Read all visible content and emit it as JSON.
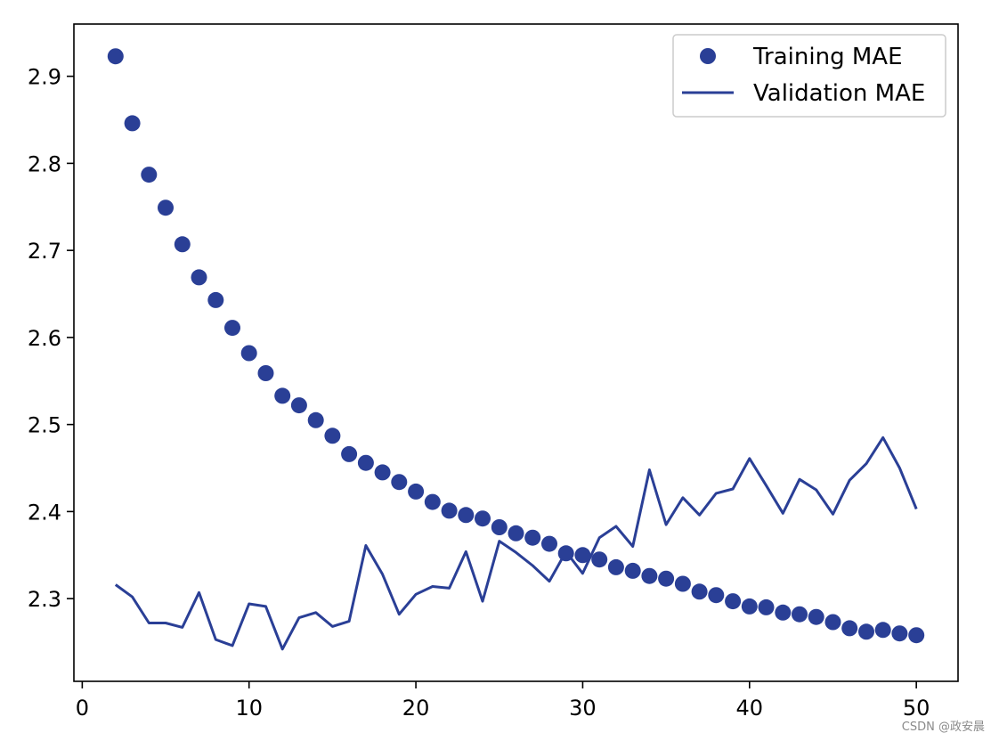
{
  "chart_data": {
    "type": "scatter",
    "title": "",
    "xlabel": "",
    "ylabel": "",
    "xlim": [
      -0.5,
      52.5
    ],
    "ylim": [
      2.205,
      2.96
    ],
    "xticks": [
      0,
      10,
      20,
      30,
      40,
      50
    ],
    "yticks": [
      2.3,
      2.4,
      2.5,
      2.6,
      2.7,
      2.8,
      2.9
    ],
    "grid": false,
    "legend_position": "top-right",
    "series": [
      {
        "name": "Training MAE",
        "style": "markers",
        "color": "#2a3f96",
        "x": [
          2,
          3,
          4,
          5,
          6,
          7,
          8,
          9,
          10,
          11,
          12,
          13,
          14,
          15,
          16,
          17,
          18,
          19,
          20,
          21,
          22,
          23,
          24,
          25,
          26,
          27,
          28,
          29,
          30,
          31,
          32,
          33,
          34,
          35,
          36,
          37,
          38,
          39,
          40,
          41,
          42,
          43,
          44,
          45,
          46,
          47,
          48,
          49,
          50
        ],
        "y": [
          2.923,
          2.846,
          2.787,
          2.749,
          2.707,
          2.669,
          2.643,
          2.611,
          2.582,
          2.559,
          2.533,
          2.522,
          2.505,
          2.487,
          2.466,
          2.456,
          2.445,
          2.434,
          2.423,
          2.411,
          2.401,
          2.396,
          2.392,
          2.382,
          2.375,
          2.37,
          2.363,
          2.352,
          2.35,
          2.345,
          2.336,
          2.332,
          2.326,
          2.323,
          2.317,
          2.308,
          2.304,
          2.297,
          2.291,
          2.29,
          2.284,
          2.282,
          2.279,
          2.273,
          2.266,
          2.262,
          2.264,
          2.26,
          2.258
        ]
      },
      {
        "name": "Validation MAE",
        "style": "line",
        "color": "#2a3f96",
        "x": [
          2,
          3,
          4,
          5,
          6,
          7,
          8,
          9,
          10,
          11,
          12,
          13,
          14,
          15,
          16,
          17,
          18,
          19,
          20,
          21,
          22,
          23,
          24,
          25,
          26,
          27,
          28,
          29,
          30,
          31,
          32,
          33,
          34,
          35,
          36,
          37,
          38,
          39,
          40,
          41,
          42,
          43,
          44,
          45,
          46,
          47,
          48,
          49,
          50
        ],
        "y": [
          2.316,
          2.302,
          2.272,
          2.272,
          2.267,
          2.307,
          2.253,
          2.246,
          2.294,
          2.291,
          2.242,
          2.278,
          2.284,
          2.268,
          2.274,
          2.361,
          2.328,
          2.282,
          2.305,
          2.314,
          2.312,
          2.354,
          2.297,
          2.366,
          2.353,
          2.338,
          2.32,
          2.354,
          2.329,
          2.37,
          2.383,
          2.36,
          2.448,
          2.385,
          2.416,
          2.396,
          2.421,
          2.426,
          2.461,
          2.43,
          2.398,
          2.437,
          2.425,
          2.397,
          2.436,
          2.455,
          2.485,
          2.45,
          2.403
        ]
      }
    ]
  },
  "watermark": "CSDN @政安晨"
}
